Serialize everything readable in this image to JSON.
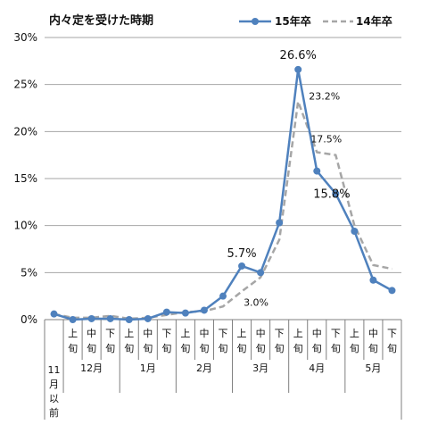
{
  "chart_data": {
    "type": "line",
    "title": "内々定を受けた時期",
    "x_top": [
      "",
      "上",
      "中",
      "下",
      "上",
      "中",
      "下",
      "上",
      "中",
      "下",
      "上",
      "中",
      "下",
      "上",
      "中",
      "下",
      "上",
      "中",
      "下"
    ],
    "x_bottom": [
      "",
      "旬",
      "旬",
      "旬",
      "旬",
      "旬",
      "旬",
      "旬",
      "旬",
      "旬",
      "旬",
      "旬",
      "旬",
      "旬",
      "旬",
      "旬",
      "旬",
      "旬",
      "旬"
    ],
    "first_category_lines": [
      "11",
      "月",
      "以",
      "前"
    ],
    "months": [
      {
        "label": "12月",
        "start": 1,
        "end": 3
      },
      {
        "label": "1月",
        "start": 4,
        "end": 6
      },
      {
        "label": "2月",
        "start": 7,
        "end": 9
      },
      {
        "label": "3月",
        "start": 10,
        "end": 12
      },
      {
        "label": "4月",
        "start": 13,
        "end": 15
      },
      {
        "label": "5月",
        "start": 16,
        "end": 18
      }
    ],
    "y_ticks": [
      "0%",
      "5%",
      "10%",
      "15%",
      "20%",
      "25%",
      "30%"
    ],
    "ylim": [
      0,
      30
    ],
    "grid": true,
    "legend_position": "top-right",
    "series": [
      {
        "name": "15年卒",
        "color": "#4f81bd",
        "style": "solid-marker",
        "values": [
          0.6,
          0.0,
          0.1,
          0.1,
          0.0,
          0.1,
          0.8,
          0.7,
          1.0,
          2.5,
          5.7,
          5.0,
          10.3,
          26.6,
          15.8,
          13.4,
          9.4,
          4.2,
          3.1
        ]
      },
      {
        "name": "14年卒",
        "color": "#a6a6a6",
        "style": "dashed",
        "values": [
          0.6,
          0.2,
          0.2,
          0.4,
          0.1,
          0.2,
          0.5,
          0.8,
          0.9,
          1.4,
          3.0,
          4.5,
          8.5,
          23.2,
          17.8,
          17.5,
          10.0,
          5.8,
          5.4
        ]
      }
    ],
    "annotations": [
      {
        "text": "26.6%",
        "series": 0,
        "index": 13
      },
      {
        "text": "23.2%",
        "series": 1,
        "index": 13
      },
      {
        "text": "17.5%",
        "series": 1,
        "index": 15
      },
      {
        "text": "15.8%",
        "series": 0,
        "index": 14
      },
      {
        "text": "5.7%",
        "series": 0,
        "index": 10
      },
      {
        "text": "3.0%",
        "series": 1,
        "index": 10
      }
    ]
  }
}
